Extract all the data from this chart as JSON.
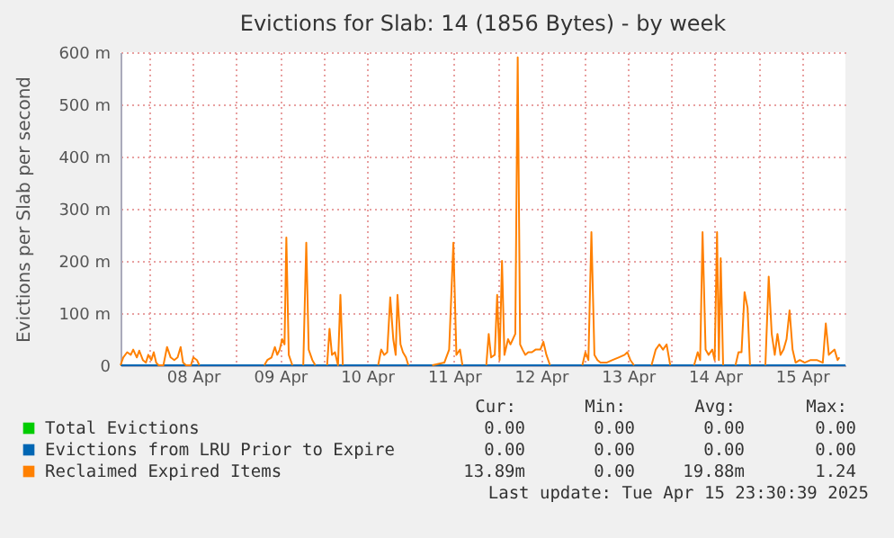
{
  "chart_data": {
    "type": "line",
    "title": "Evictions for Slab: 14 (1856 Bytes) - by week",
    "ylabel": "Evictions per Slab per second",
    "xlim": [
      "2025-04-07T16:00",
      "2025-04-16T00:00"
    ],
    "xticks": [
      {
        "value": "2025-04-08T00:00",
        "label": null
      },
      {
        "value": "2025-04-08T12:00",
        "label": "08 Apr"
      },
      {
        "value": "2025-04-09T00:00",
        "label": null
      },
      {
        "value": "2025-04-09T12:00",
        "label": "09 Apr"
      },
      {
        "value": "2025-04-10T00:00",
        "label": null
      },
      {
        "value": "2025-04-10T12:00",
        "label": "10 Apr"
      },
      {
        "value": "2025-04-11T00:00",
        "label": null
      },
      {
        "value": "2025-04-11T12:00",
        "label": "11 Apr"
      },
      {
        "value": "2025-04-12T00:00",
        "label": null
      },
      {
        "value": "2025-04-12T12:00",
        "label": "12 Apr"
      },
      {
        "value": "2025-04-13T00:00",
        "label": null
      },
      {
        "value": "2025-04-13T12:00",
        "label": "13 Apr"
      },
      {
        "value": "2025-04-14T00:00",
        "label": null
      },
      {
        "value": "2025-04-14T12:00",
        "label": "14 Apr"
      },
      {
        "value": "2025-04-15T00:00",
        "label": null
      },
      {
        "value": "2025-04-15T12:00",
        "label": "15 Apr"
      }
    ],
    "ylim": [
      0,
      600
    ],
    "yticks": [
      {
        "value": 0,
        "label": "0"
      },
      {
        "value": 100,
        "label": "100 m"
      },
      {
        "value": 200,
        "label": "200 m"
      },
      {
        "value": 300,
        "label": "300 m"
      },
      {
        "value": 400,
        "label": "400 m"
      },
      {
        "value": 500,
        "label": "500 m"
      },
      {
        "value": 600,
        "label": "600 m"
      }
    ],
    "grid": true,
    "legend": "bottom",
    "series": [
      {
        "name": "Total Evictions",
        "color": "#00cc00"
      },
      {
        "name": "Evictions from LRU Prior to Expire",
        "color": "#0066b3",
        "x": [
          "2025-04-07T16:00",
          "2025-04-16T00:00"
        ],
        "values": [
          0,
          0
        ]
      },
      {
        "name": "Reclaimed Expired Items",
        "color": "#ff8000",
        "x": [
          "2025-04-07T16:00",
          "2025-04-07T16:45",
          "2025-04-07T17:50",
          "2025-04-07T18:50",
          "2025-04-07T19:30",
          "2025-04-07T20:30",
          "2025-04-07T21:10",
          "2025-04-07T22:10",
          "2025-04-07T23:00",
          "2025-04-07T23:40",
          "2025-04-08T00:30",
          "2025-04-08T01:10",
          "2025-04-08T01:50",
          "2025-04-08T02:30",
          "2025-04-08T03:50",
          "2025-04-08T04:50",
          "2025-04-08T05:50",
          "2025-04-08T06:50",
          "2025-04-08T07:45",
          "2025-04-08T08:35",
          "2025-04-08T09:15",
          "2025-04-08T10:05",
          "2025-04-08T11:25",
          "2025-04-08T12:05",
          "2025-04-08T13:05",
          "2025-04-08T13:45",
          "2025-04-08T22:00",
          "2025-04-09T07:40",
          "2025-04-09T08:30",
          "2025-04-09T09:40",
          "2025-04-09T10:35",
          "2025-04-09T11:15",
          "2025-04-09T11:55",
          "2025-04-09T12:35",
          "2025-04-09T13:15",
          "2025-04-09T13:45",
          "2025-04-09T14:25",
          "2025-04-09T15:25",
          "2025-04-09T17:00",
          "2025-04-09T18:25",
          "2025-04-09T19:15",
          "2025-04-09T19:55",
          "2025-04-09T20:55",
          "2025-04-09T21:45",
          "2025-04-09T23:30",
          "2025-04-10T01:00",
          "2025-04-10T01:40",
          "2025-04-10T02:20",
          "2025-04-10T03:10",
          "2025-04-10T04:00",
          "2025-04-10T04:40",
          "2025-04-10T05:20",
          "2025-04-10T10:00",
          "2025-04-10T15:05",
          "2025-04-10T15:55",
          "2025-04-10T16:45",
          "2025-04-10T17:35",
          "2025-04-10T18:25",
          "2025-04-10T19:15",
          "2025-04-10T19:55",
          "2025-04-10T20:25",
          "2025-04-10T21:15",
          "2025-04-10T21:55",
          "2025-04-10T22:45",
          "2025-04-10T23:25",
          "2025-04-11T03:00",
          "2025-04-11T06:00",
          "2025-04-11T09:20",
          "2025-04-11T10:40",
          "2025-04-11T11:50",
          "2025-04-11T12:40",
          "2025-04-11T13:40",
          "2025-04-11T14:20",
          "2025-04-11T17:30",
          "2025-04-11T20:55",
          "2025-04-11T21:35",
          "2025-04-11T22:15",
          "2025-04-11T23:15",
          "2025-04-11T23:55",
          "2025-04-12T00:35",
          "2025-04-12T01:15",
          "2025-04-12T01:55",
          "2025-04-12T02:55",
          "2025-04-12T03:35",
          "2025-04-12T04:15",
          "2025-04-12T04:55",
          "2025-04-12T05:35",
          "2025-04-12T06:15",
          "2025-04-12T06:55",
          "2025-04-12T07:40",
          "2025-04-12T08:30",
          "2025-04-12T09:30",
          "2025-04-12T10:30",
          "2025-04-12T11:50",
          "2025-04-12T12:40",
          "2025-04-12T13:30",
          "2025-04-12T14:30",
          "2025-04-12T19:00",
          "2025-04-12T23:25",
          "2025-04-13T00:15",
          "2025-04-13T01:05",
          "2025-04-13T01:55",
          "2025-04-13T02:45",
          "2025-04-13T03:35",
          "2025-04-13T04:25",
          "2025-04-13T06:05",
          "2025-04-13T07:45",
          "2025-04-13T09:25",
          "2025-04-13T11:05",
          "2025-04-13T11:50",
          "2025-04-13T12:40",
          "2025-04-13T13:40",
          "2025-04-13T16:00",
          "2025-04-13T18:30",
          "2025-04-13T19:40",
          "2025-04-13T20:40",
          "2025-04-13T21:40",
          "2025-04-13T22:40",
          "2025-04-13T23:40",
          "2025-04-14T03:00",
          "2025-04-14T06:15",
          "2025-04-14T07:15",
          "2025-04-14T07:55",
          "2025-04-14T08:35",
          "2025-04-14T09:25",
          "2025-04-14T10:15",
          "2025-04-14T11:15",
          "2025-04-14T11:55",
          "2025-04-14T12:35",
          "2025-04-14T13:05",
          "2025-04-14T13:35",
          "2025-04-14T14:15",
          "2025-04-14T16:00",
          "2025-04-14T17:40",
          "2025-04-14T18:30",
          "2025-04-14T19:20",
          "2025-04-14T20:10",
          "2025-04-14T21:00",
          "2025-04-14T21:40",
          "2025-04-14T23:50",
          "2025-04-15T01:55",
          "2025-04-15T02:50",
          "2025-04-15T03:40",
          "2025-04-15T04:30",
          "2025-04-15T05:15",
          "2025-04-15T06:05",
          "2025-04-15T06:55",
          "2025-04-15T07:45",
          "2025-04-15T08:35",
          "2025-04-15T09:25",
          "2025-04-15T10:15",
          "2025-04-15T11:25",
          "2025-04-15T12:45",
          "2025-04-15T14:25",
          "2025-04-15T16:05",
          "2025-04-15T17:45",
          "2025-04-15T18:35",
          "2025-04-15T19:25",
          "2025-04-15T20:10",
          "2025-04-15T21:00",
          "2025-04-15T21:50",
          "2025-04-15T22:20"
        ],
        "values": [
          0,
          15,
          25,
          20,
          30,
          15,
          28,
          10,
          5,
          20,
          10,
          25,
          5,
          0,
          0,
          35,
          15,
          10,
          15,
          35,
          5,
          0,
          0,
          15,
          10,
          0,
          null,
          0,
          10,
          15,
          35,
          20,
          30,
          50,
          40,
          245,
          20,
          0,
          null,
          0,
          235,
          30,
          10,
          0,
          null,
          0,
          70,
          20,
          25,
          0,
          135,
          0,
          null,
          0,
          30,
          20,
          25,
          130,
          50,
          20,
          135,
          40,
          25,
          15,
          0,
          null,
          0,
          5,
          30,
          235,
          20,
          30,
          0,
          null,
          0,
          60,
          15,
          20,
          135,
          10,
          200,
          20,
          50,
          40,
          50,
          60,
          590,
          40,
          30,
          20,
          25,
          25,
          30,
          30,
          45,
          20,
          0,
          null,
          0,
          25,
          10,
          255,
          20,
          10,
          5,
          5,
          10,
          15,
          20,
          25,
          10,
          0,
          null,
          0,
          30,
          40,
          30,
          40,
          0,
          null,
          0,
          25,
          10,
          255,
          30,
          20,
          30,
          10,
          255,
          10,
          205,
          0,
          null,
          0,
          25,
          25,
          140,
          110,
          0,
          null,
          0,
          170,
          60,
          20,
          60,
          20,
          30,
          50,
          105,
          30,
          5,
          10,
          5,
          10,
          10,
          5,
          80,
          20,
          25,
          30,
          10,
          15
        ]
      }
    ],
    "annotations": [
      "Cur:",
      "Min:",
      "Avg:",
      "Max:",
      "0.00",
      "0.00",
      "0.00",
      "0.00",
      "0.00",
      "0.00",
      "0.00",
      "0.00",
      "13.89m",
      "0.00",
      "19.88m",
      "1.24",
      "Last update: Tue Apr 15 23:30:39 2025"
    ]
  }
}
